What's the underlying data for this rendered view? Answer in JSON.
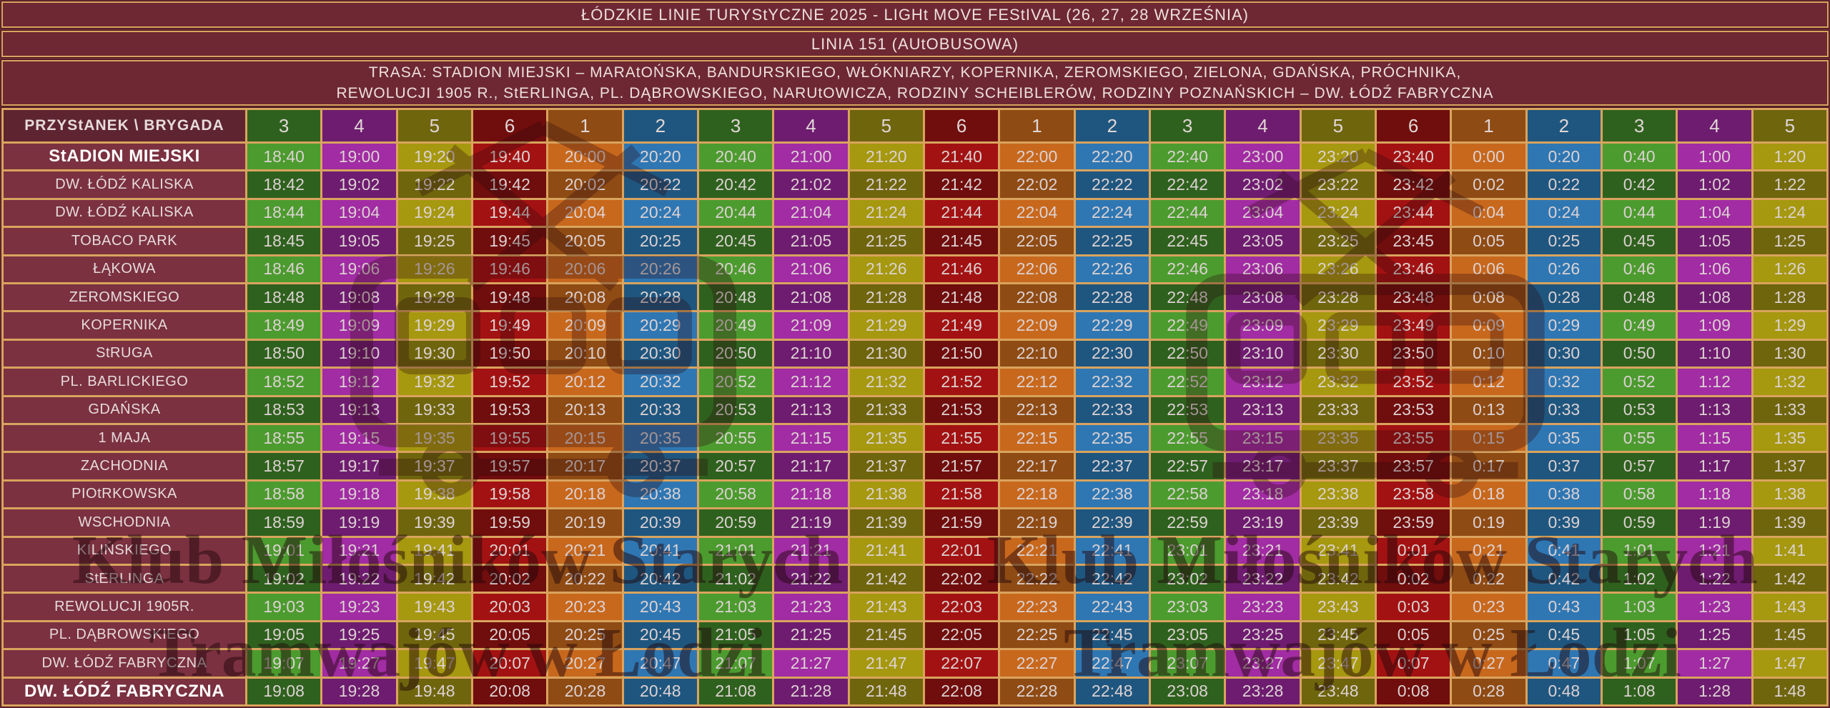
{
  "title_lines": [
    "ŁÓDZKIE LINIE TURYStYCZNE 2025 - LIGHt MOVE FEStIVAL (26, 27, 28 WRZEŚNIA)",
    "LINIA 151 (AUtOBUSOWA)"
  ],
  "route_lines": [
    "TRASA: STADION MIEJSKI – MARAtOŃSKA, BANDURSKIEGO, WŁÓKNIARZY, KOPERNIKA, ZEROMSKIEGO, ZIELONA, GDAŃSKA, PRÓCHNIKA,",
    "REWOLUCJI 1905 R., StERLINGA, PL. DĄBROWSKIEGO, NARUtOWICZA, RODZINY SCHEIBLERÓW, RODZINY POZNAŃSKICH – DW. ŁÓDŹ FABRYCZNA"
  ],
  "corner_header": "PRZYStANEK \\ BRYGADA",
  "brigades": [
    "3",
    "4",
    "5",
    "6",
    "1",
    "2",
    "3",
    "4",
    "5",
    "6",
    "1",
    "2",
    "3",
    "4",
    "5",
    "6",
    "1",
    "2",
    "3",
    "4",
    "5"
  ],
  "brigade_colors": {
    "1": {
      "light": "#C8681D",
      "dark": "#8F4B14"
    },
    "2": {
      "light": "#2F77B3",
      "dark": "#1F567F"
    },
    "3": {
      "light": "#4C9B2F",
      "dark": "#2F611E"
    },
    "4": {
      "light": "#A12CA3",
      "dark": "#6E1C70"
    },
    "5": {
      "light": "#A6980F",
      "dark": "#6F650D"
    },
    "6": {
      "light": "#A31212",
      "dark": "#700D0D"
    }
  },
  "stops": [
    {
      "name": "StADION MIEJSKI",
      "bold": true,
      "times": [
        "18:40",
        "19:00",
        "19:20",
        "19:40",
        "20:00",
        "20:20",
        "20:40",
        "21:00",
        "21:20",
        "21:40",
        "22:00",
        "22:20",
        "22:40",
        "23:00",
        "23:20",
        "23:40",
        "0:00",
        "0:20",
        "0:40",
        "1:00",
        "1:20"
      ]
    },
    {
      "name": "DW. ŁÓDŹ KALISKA",
      "bold": false,
      "times": [
        "18:42",
        "19:02",
        "19:22",
        "19:42",
        "20:02",
        "20:22",
        "20:42",
        "21:02",
        "21:22",
        "21:42",
        "22:02",
        "22:22",
        "22:42",
        "23:02",
        "23:22",
        "23:42",
        "0:02",
        "0:22",
        "0:42",
        "1:02",
        "1:22"
      ]
    },
    {
      "name": "DW. ŁÓDŹ KALISKA",
      "bold": false,
      "times": [
        "18:44",
        "19:04",
        "19:24",
        "19:44",
        "20:04",
        "20:24",
        "20:44",
        "21:04",
        "21:24",
        "21:44",
        "22:04",
        "22:24",
        "22:44",
        "23:04",
        "23:24",
        "23:44",
        "0:04",
        "0:24",
        "0:44",
        "1:04",
        "1:24"
      ]
    },
    {
      "name": "TOBACO PARK",
      "bold": false,
      "times": [
        "18:45",
        "19:05",
        "19:25",
        "19:45",
        "20:05",
        "20:25",
        "20:45",
        "21:05",
        "21:25",
        "21:45",
        "22:05",
        "22:25",
        "22:45",
        "23:05",
        "23:25",
        "23:45",
        "0:05",
        "0:25",
        "0:45",
        "1:05",
        "1:25"
      ]
    },
    {
      "name": "ŁĄKOWA",
      "bold": false,
      "times": [
        "18:46",
        "19:06",
        "19:26",
        "19:46",
        "20:06",
        "20:26",
        "20:46",
        "21:06",
        "21:26",
        "21:46",
        "22:06",
        "22:26",
        "22:46",
        "23:06",
        "23:26",
        "23:46",
        "0:06",
        "0:26",
        "0:46",
        "1:06",
        "1:26"
      ]
    },
    {
      "name": "ZEROMSKIEGO",
      "bold": false,
      "times": [
        "18:48",
        "19:08",
        "19:28",
        "19:48",
        "20:08",
        "20:28",
        "20:48",
        "21:08",
        "21:28",
        "21:48",
        "22:08",
        "22:28",
        "22:48",
        "23:08",
        "23:28",
        "23:48",
        "0:08",
        "0:28",
        "0:48",
        "1:08",
        "1:28"
      ]
    },
    {
      "name": "KOPERNIKA",
      "bold": false,
      "times": [
        "18:49",
        "19:09",
        "19:29",
        "19:49",
        "20:09",
        "20:29",
        "20:49",
        "21:09",
        "21:29",
        "21:49",
        "22:09",
        "22:29",
        "22:49",
        "23:09",
        "23:29",
        "23:49",
        "0:09",
        "0:29",
        "0:49",
        "1:09",
        "1:29"
      ]
    },
    {
      "name": "StRUGA",
      "bold": false,
      "times": [
        "18:50",
        "19:10",
        "19:30",
        "19:50",
        "20:10",
        "20:30",
        "20:50",
        "21:10",
        "21:30",
        "21:50",
        "22:10",
        "22:30",
        "22:50",
        "23:10",
        "23:30",
        "23:50",
        "0:10",
        "0:30",
        "0:50",
        "1:10",
        "1:30"
      ]
    },
    {
      "name": "PL. BARLICKIEGO",
      "bold": false,
      "times": [
        "18:52",
        "19:12",
        "19:32",
        "19:52",
        "20:12",
        "20:32",
        "20:52",
        "21:12",
        "21:32",
        "21:52",
        "22:12",
        "22:32",
        "22:52",
        "23:12",
        "23:32",
        "23:52",
        "0:12",
        "0:32",
        "0:52",
        "1:12",
        "1:32"
      ]
    },
    {
      "name": "GDAŃSKA",
      "bold": false,
      "times": [
        "18:53",
        "19:13",
        "19:33",
        "19:53",
        "20:13",
        "20:33",
        "20:53",
        "21:13",
        "21:33",
        "21:53",
        "22:13",
        "22:33",
        "22:53",
        "23:13",
        "23:33",
        "23:53",
        "0:13",
        "0:33",
        "0:53",
        "1:13",
        "1:33"
      ]
    },
    {
      "name": "1 MAJA",
      "bold": false,
      "times": [
        "18:55",
        "19:15",
        "19:35",
        "19:55",
        "20:15",
        "20:35",
        "20:55",
        "21:15",
        "21:35",
        "21:55",
        "22:15",
        "22:35",
        "22:55",
        "23:15",
        "23:35",
        "23:55",
        "0:15",
        "0:35",
        "0:55",
        "1:15",
        "1:35"
      ]
    },
    {
      "name": "ZACHODNIA",
      "bold": false,
      "times": [
        "18:57",
        "19:17",
        "19:37",
        "19:57",
        "20:17",
        "20:37",
        "20:57",
        "21:17",
        "21:37",
        "21:57",
        "22:17",
        "22:37",
        "22:57",
        "23:17",
        "23:37",
        "23:57",
        "0:17",
        "0:37",
        "0:57",
        "1:17",
        "1:37"
      ]
    },
    {
      "name": "PIOtRKOWSKA",
      "bold": false,
      "times": [
        "18:58",
        "19:18",
        "19:38",
        "19:58",
        "20:18",
        "20:38",
        "20:58",
        "21:18",
        "21:38",
        "21:58",
        "22:18",
        "22:38",
        "22:58",
        "23:18",
        "23:38",
        "23:58",
        "0:18",
        "0:38",
        "0:58",
        "1:18",
        "1:38"
      ]
    },
    {
      "name": "WSCHODNIA",
      "bold": false,
      "times": [
        "18:59",
        "19:19",
        "19:39",
        "19:59",
        "20:19",
        "20:39",
        "20:59",
        "21:19",
        "21:39",
        "21:59",
        "22:19",
        "22:39",
        "22:59",
        "23:19",
        "23:39",
        "23:59",
        "0:19",
        "0:39",
        "0:59",
        "1:19",
        "1:39"
      ]
    },
    {
      "name": "KILIŃSKIEGO",
      "bold": false,
      "times": [
        "19:01",
        "19:21",
        "19:41",
        "20:01",
        "20:21",
        "20:41",
        "21:01",
        "21:21",
        "21:41",
        "22:01",
        "22:21",
        "22:41",
        "23:01",
        "23:21",
        "23:41",
        "0:01",
        "0:21",
        "0:41",
        "1:01",
        "1:21",
        "1:41"
      ]
    },
    {
      "name": "StERLINGA",
      "bold": false,
      "times": [
        "19:02",
        "19:22",
        "19:42",
        "20:02",
        "20:22",
        "20:42",
        "21:02",
        "21:22",
        "21:42",
        "22:02",
        "22:22",
        "22:42",
        "23:02",
        "23:22",
        "23:42",
        "0:02",
        "0:22",
        "0:42",
        "1:02",
        "1:22",
        "1:42"
      ]
    },
    {
      "name": "REWOLUCJI 1905R.",
      "bold": false,
      "times": [
        "19:03",
        "19:23",
        "19:43",
        "20:03",
        "20:23",
        "20:43",
        "21:03",
        "21:23",
        "21:43",
        "22:03",
        "22:23",
        "22:43",
        "23:03",
        "23:23",
        "23:43",
        "0:03",
        "0:23",
        "0:43",
        "1:03",
        "1:23",
        "1:43"
      ]
    },
    {
      "name": "PL. DĄBROWSKIEGO",
      "bold": false,
      "times": [
        "19:05",
        "19:25",
        "19:45",
        "20:05",
        "20:25",
        "20:45",
        "21:05",
        "21:25",
        "21:45",
        "22:05",
        "22:25",
        "22:45",
        "23:05",
        "23:25",
        "23:45",
        "0:05",
        "0:25",
        "0:45",
        "1:05",
        "1:25",
        "1:45"
      ]
    },
    {
      "name": "DW. ŁÓDŹ FABRYCZNA",
      "bold": false,
      "times": [
        "19:07",
        "19:27",
        "19:47",
        "20:07",
        "20:27",
        "20:47",
        "21:07",
        "21:27",
        "21:47",
        "22:07",
        "22:27",
        "22:47",
        "23:07",
        "23:27",
        "23:47",
        "0:07",
        "0:27",
        "0:47",
        "1:07",
        "1:27",
        "1:47"
      ]
    },
    {
      "name": "DW. ŁÓDŹ FABRYCZNA",
      "bold": true,
      "times": [
        "19:08",
        "19:28",
        "19:48",
        "20:08",
        "20:28",
        "20:48",
        "21:08",
        "21:28",
        "21:48",
        "22:08",
        "22:28",
        "22:48",
        "23:08",
        "23:28",
        "23:48",
        "0:08",
        "0:28",
        "0:48",
        "1:08",
        "1:28",
        "1:48"
      ]
    }
  ],
  "watermark": {
    "line1": "Klub Miłośników Starych",
    "line2": "Tramwajów w Łodzi"
  },
  "colors": {
    "page_background": "#712B37",
    "bar_background": "#6E2833",
    "stop_cell_background": "#7B3140",
    "corner_cell_background": "#5E2530",
    "grid_border": "#D9A45E",
    "text": "#EDE0DD"
  }
}
